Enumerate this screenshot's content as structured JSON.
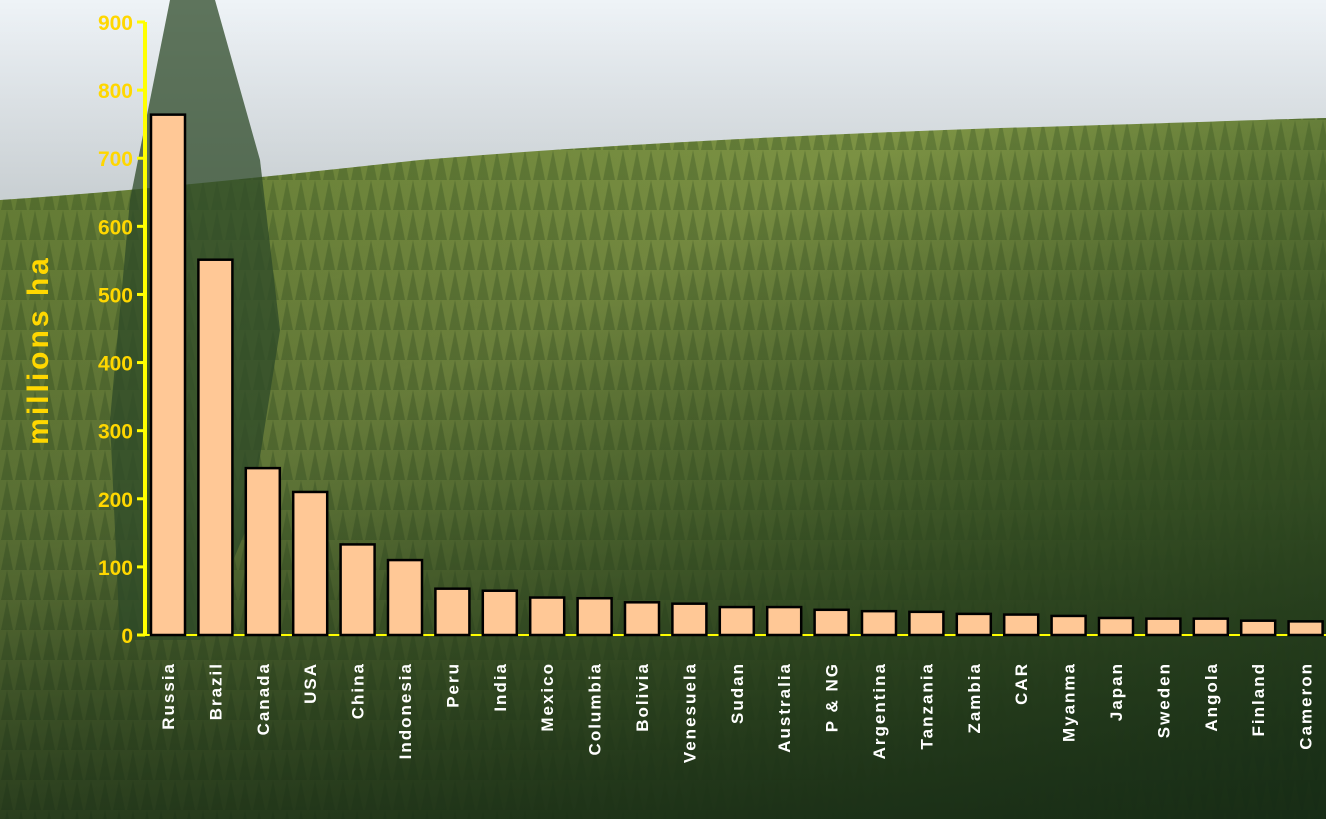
{
  "chart_data": {
    "type": "bar",
    "title": "",
    "xlabel": "",
    "ylabel": "millions ha",
    "ylim": [
      0,
      900
    ],
    "yticks": [
      0,
      100,
      200,
      300,
      400,
      500,
      600,
      700,
      800,
      900
    ],
    "grid": false,
    "legend": "none",
    "categories": [
      "Russia",
      "Brazil",
      "Canada",
      "USA",
      "China",
      "Indonesia",
      "Peru",
      "India",
      "Mexico",
      "Columbia",
      "Bolivia",
      "Venesuela",
      "Sudan",
      "Australia",
      "P & NG",
      "Argentina",
      "Tanzania",
      "Zambia",
      "CAR",
      "Myanma",
      "Japan",
      "Sweden",
      "Angola",
      "Finland",
      "Cameron"
    ],
    "values": [
      764,
      551,
      245,
      210,
      133,
      110,
      68,
      65,
      55,
      54,
      48,
      46,
      41,
      41,
      37,
      35,
      34,
      31,
      30,
      28,
      25,
      24,
      24,
      21,
      20
    ],
    "colors": {
      "bar_fill": "#FFC896",
      "bar_stroke": "#000000",
      "axis": "#FFFF00",
      "tick_text": "#FFD700",
      "category_text": "#FFFFFF"
    }
  }
}
